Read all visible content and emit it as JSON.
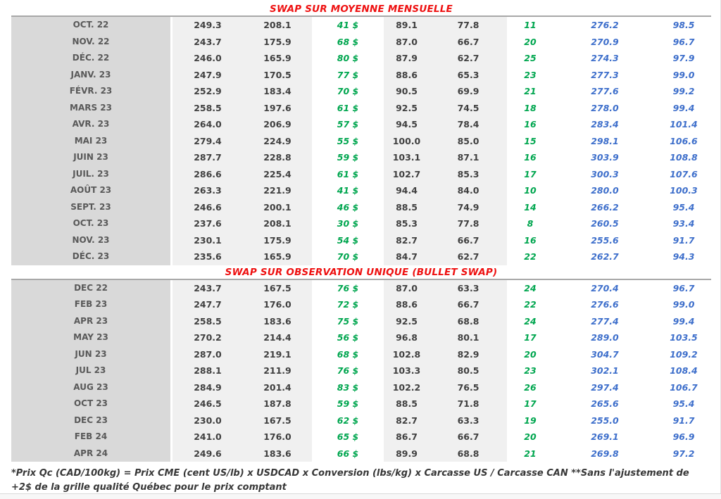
{
  "colors": {
    "title-red": "#EE1111",
    "green": "#00A64F",
    "blue": "#3E6FCB",
    "month-bg": "#D9D9D9",
    "value-bg": "#F0F0F0",
    "num-color": "#404040",
    "month-color": "#595959"
  },
  "tables": [
    {
      "title": "SWAP SUR MOYENNE MENSUELLE",
      "rows": [
        [
          "OCT. 22",
          "249.3",
          "208.1",
          "41 $",
          "89.1",
          "77.8",
          "11",
          "276.2",
          "98.5"
        ],
        [
          "NOV. 22",
          "243.7",
          "175.9",
          "68 $",
          "87.0",
          "66.7",
          "20",
          "270.9",
          "96.7"
        ],
        [
          "DÉC. 22",
          "246.0",
          "165.9",
          "80 $",
          "87.9",
          "62.7",
          "25",
          "274.3",
          "97.9"
        ],
        [
          "JANV. 23",
          "247.9",
          "170.5",
          "77 $",
          "88.6",
          "65.3",
          "23",
          "277.3",
          "99.0"
        ],
        [
          "FÉVR. 23",
          "252.9",
          "183.4",
          "70 $",
          "90.5",
          "69.9",
          "21",
          "277.6",
          "99.2"
        ],
        [
          "MARS 23",
          "258.5",
          "197.6",
          "61 $",
          "92.5",
          "74.5",
          "18",
          "278.0",
          "99.4"
        ],
        [
          "AVR. 23",
          "264.0",
          "206.9",
          "57 $",
          "94.5",
          "78.4",
          "16",
          "283.4",
          "101.4"
        ],
        [
          "MAI 23",
          "279.4",
          "224.9",
          "55 $",
          "100.0",
          "85.0",
          "15",
          "298.1",
          "106.6"
        ],
        [
          "JUIN 23",
          "287.7",
          "228.8",
          "59 $",
          "103.1",
          "87.1",
          "16",
          "303.9",
          "108.8"
        ],
        [
          "JUIL. 23",
          "286.6",
          "225.4",
          "61 $",
          "102.7",
          "85.3",
          "17",
          "300.3",
          "107.6"
        ],
        [
          "AOÛT 23",
          "263.3",
          "221.9",
          "41 $",
          "94.4",
          "84.0",
          "10",
          "280.0",
          "100.3"
        ],
        [
          "SEPT. 23",
          "246.6",
          "200.1",
          "46 $",
          "88.5",
          "74.9",
          "14",
          "266.2",
          "95.4"
        ],
        [
          "OCT. 23",
          "237.6",
          "208.1",
          "30 $",
          "85.3",
          "77.8",
          "8",
          "260.5",
          "93.4"
        ],
        [
          "NOV. 23",
          "230.1",
          "175.9",
          "54 $",
          "82.7",
          "66.7",
          "16",
          "255.6",
          "91.7"
        ],
        [
          "DÉC. 23",
          "235.6",
          "165.9",
          "70 $",
          "84.7",
          "62.7",
          "22",
          "262.7",
          "94.3"
        ]
      ]
    },
    {
      "title": "SWAP SUR OBSERVATION UNIQUE (BULLET SWAP)",
      "rows": [
        [
          "DEC 22",
          "243.7",
          "167.5",
          "76 $",
          "87.0",
          "63.3",
          "24",
          "270.4",
          "96.7"
        ],
        [
          "FEB 23",
          "247.7",
          "176.0",
          "72 $",
          "88.6",
          "66.7",
          "22",
          "276.6",
          "99.0"
        ],
        [
          "APR 23",
          "258.5",
          "183.6",
          "75 $",
          "92.5",
          "68.8",
          "24",
          "277.4",
          "99.4"
        ],
        [
          "MAY 23",
          "270.2",
          "214.4",
          "56 $",
          "96.8",
          "80.1",
          "17",
          "289.0",
          "103.5"
        ],
        [
          "JUN 23",
          "287.0",
          "219.1",
          "68 $",
          "102.8",
          "82.9",
          "20",
          "304.7",
          "109.2"
        ],
        [
          "JUL 23",
          "288.1",
          "211.9",
          "76 $",
          "103.3",
          "80.5",
          "23",
          "302.1",
          "108.4"
        ],
        [
          "AUG 23",
          "284.9",
          "201.4",
          "83 $",
          "102.2",
          "76.5",
          "26",
          "297.4",
          "106.7"
        ],
        [
          "OCT 23",
          "246.5",
          "187.8",
          "59 $",
          "88.5",
          "71.8",
          "17",
          "265.6",
          "95.4"
        ],
        [
          "DEC 23",
          "230.0",
          "167.5",
          "62 $",
          "82.7",
          "63.3",
          "19",
          "255.0",
          "91.7"
        ],
        [
          "FEB 24",
          "241.0",
          "176.0",
          "65 $",
          "86.7",
          "66.7",
          "20",
          "269.1",
          "96.9"
        ],
        [
          "APR 24",
          "249.6",
          "183.6",
          "66 $",
          "89.9",
          "68.8",
          "21",
          "269.8",
          "97.2"
        ]
      ]
    }
  ],
  "footnote": "*Prix Qc (CAD/100kg) = Prix CME (cent US/lb) x USDCAD x Conversion (lbs/kg) x Carcasse US / Carcasse CAN **Sans l'ajustement de +2$ de la grille qualité Québec pour le prix comptant"
}
